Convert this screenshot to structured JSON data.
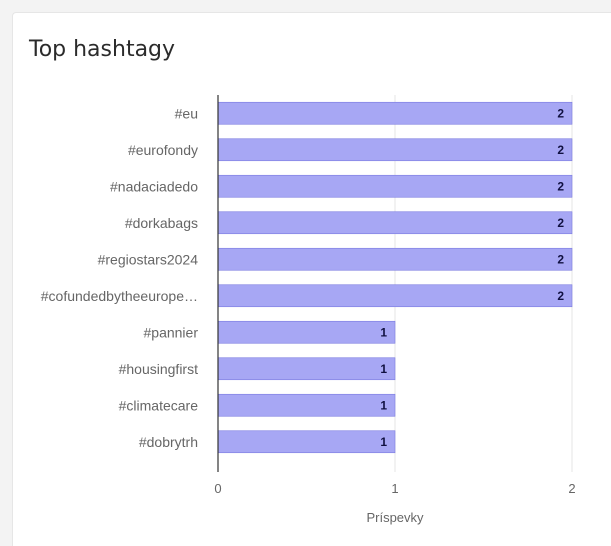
{
  "card": {
    "title": "Top hashtagy"
  },
  "colors": {
    "bar": "#a7a7f4",
    "bar_border": "#7b7be0",
    "grid": "#e4e4e4",
    "axis": "#333333",
    "label": "#666666"
  },
  "chart_data": {
    "type": "bar",
    "orientation": "horizontal",
    "title": "Top hashtagy",
    "xlabel": "Príspevky",
    "ylabel": "",
    "xlim": [
      0,
      2
    ],
    "xticks": [
      "0",
      "1",
      "2"
    ],
    "grid": true,
    "categories": [
      "#eu",
      "#eurofondy",
      "#nadaciadedo",
      "#dorkabags",
      "#regiostars2024",
      "#cofundedbytheeurope…",
      "#pannier",
      "#housingfirst",
      "#climatecare",
      "#dobrytrh"
    ],
    "values": [
      2,
      2,
      2,
      2,
      2,
      2,
      1,
      1,
      1,
      1
    ],
    "data_labels": [
      "2",
      "2",
      "2",
      "2",
      "2",
      "2",
      "1",
      "1",
      "1",
      "1"
    ]
  }
}
